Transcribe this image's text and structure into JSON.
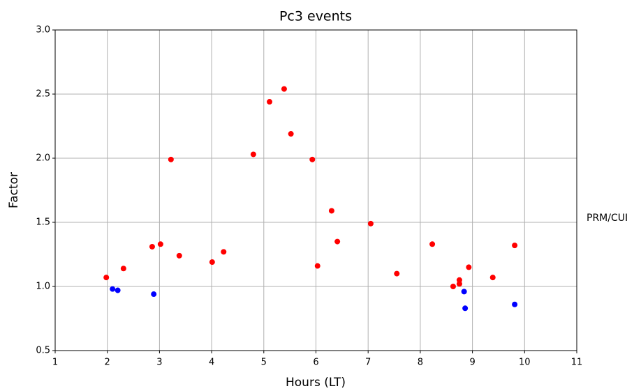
{
  "chart_data": {
    "type": "scatter",
    "title": "Pc3 events",
    "x_label": "Hours (LT)",
    "y_label": "Factor",
    "annotation": "PRM/CUI",
    "xlim": [
      1,
      11
    ],
    "ylim": [
      0.5,
      3.0
    ],
    "xticks": [
      1,
      2,
      3,
      4,
      5,
      6,
      7,
      8,
      9,
      10,
      11
    ],
    "yticks": [
      0.5,
      {
        "value": 1,
        "label": "1.0"
      },
      1.5,
      {
        "value": 2,
        "label": "2.0"
      },
      2.5,
      {
        "value": 3,
        "label": "3.0"
      }
    ],
    "grid": true,
    "series": [
      {
        "color": "#ff0000",
        "x": [
          1.98,
          2.31,
          2.86,
          3.02,
          3.22,
          3.38,
          4.01,
          4.23,
          4.8,
          5.11,
          5.39,
          5.52,
          5.93,
          6.03,
          6.3,
          6.41,
          7.05,
          7.55,
          8.23,
          8.63,
          8.75,
          8.75,
          8.93,
          9.39,
          9.81
        ],
        "y": [
          1.07,
          1.14,
          1.31,
          1.33,
          1.99,
          1.24,
          1.19,
          1.27,
          2.03,
          2.44,
          2.54,
          2.19,
          1.99,
          1.16,
          1.59,
          1.35,
          1.49,
          1.1,
          1.33,
          1.0,
          1.05,
          1.02,
          1.15,
          1.07,
          1.32
        ]
      },
      {
        "color": "#0000ff",
        "x": [
          2.1,
          2.2,
          2.89,
          8.84,
          8.86,
          9.81
        ],
        "y": [
          0.98,
          0.97,
          0.94,
          0.96,
          0.83,
          0.86
        ]
      }
    ]
  }
}
